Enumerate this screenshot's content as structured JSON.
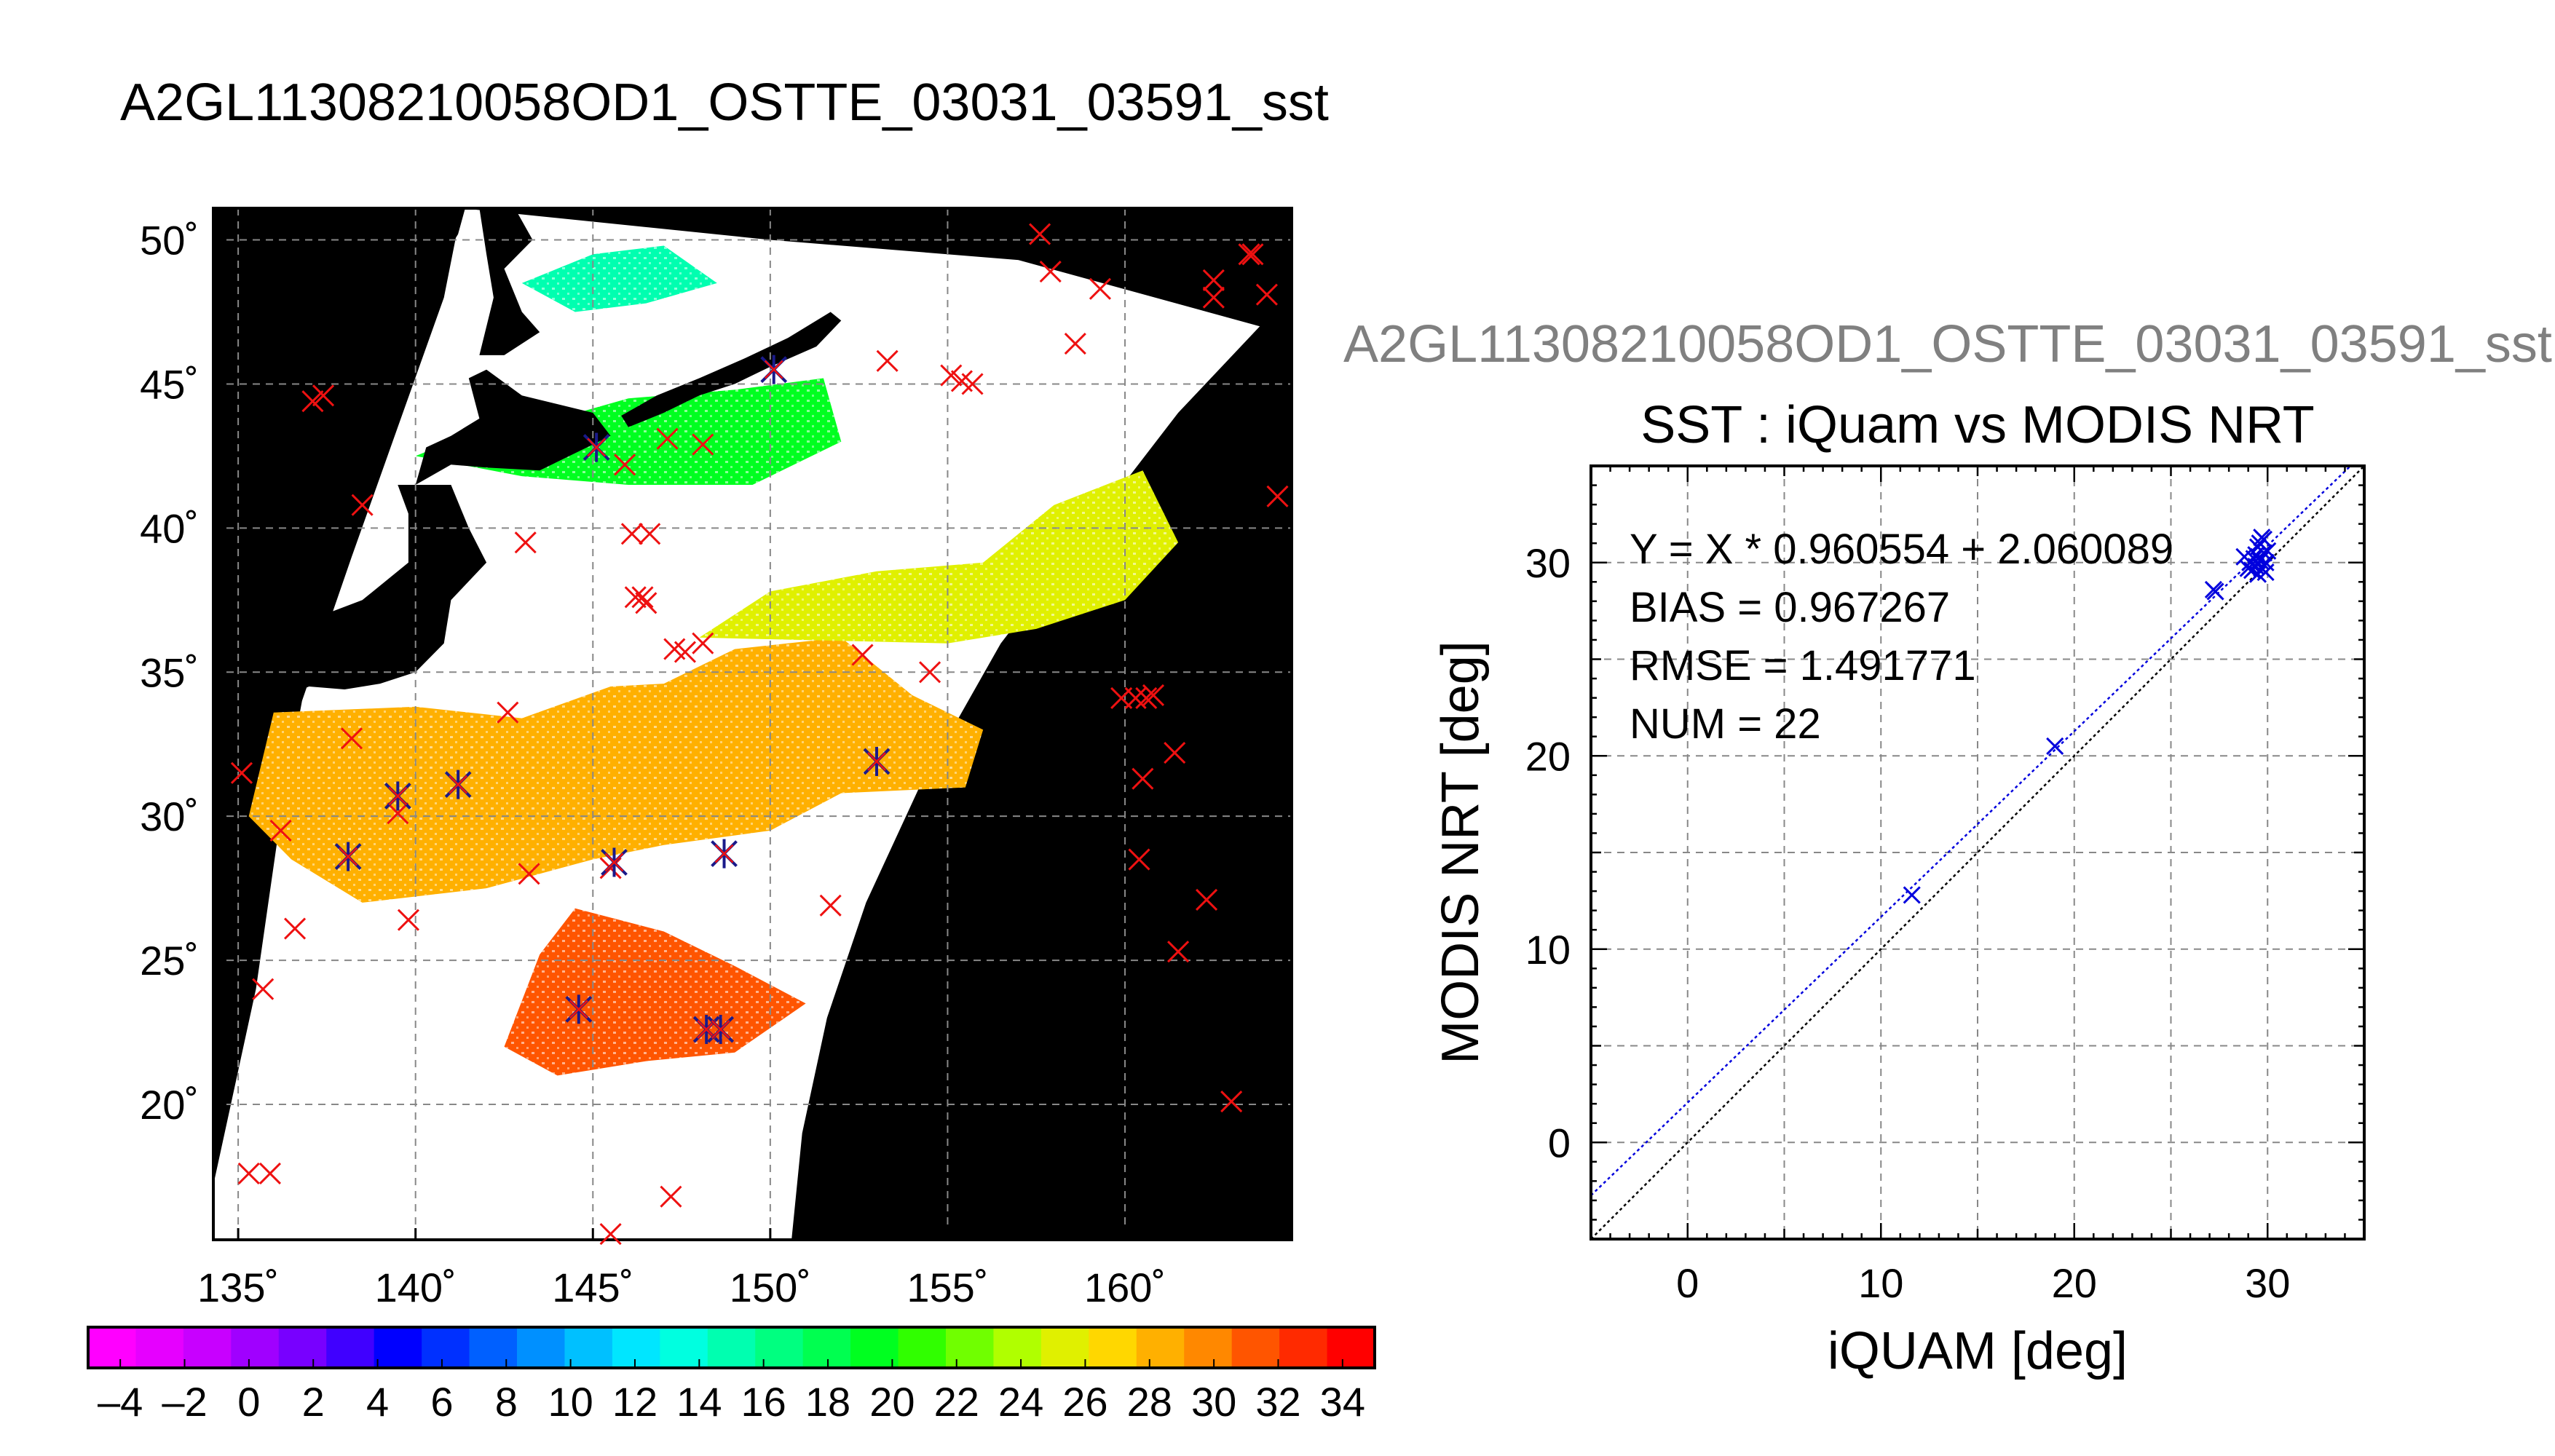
{
  "main_title": "A2GL11308210058OD1_OSTTE_03031_03591_sst",
  "secondary_title": "A2GL11308210058OD1_OSTTE_03031_03591_sst",
  "colors": {
    "map_background": "#000000",
    "cloud_mask": "#ffffff",
    "grid": "#888888",
    "marker_red": "#ee1111",
    "marker_navy": "#1a1a8a",
    "fit_line": "#0000dd",
    "identity_line": "#000000",
    "scatter_points": "#0000dd"
  },
  "chart_data": [
    {
      "type": "heatmap",
      "xlim": [
        134.3,
        164.7
      ],
      "ylim": [
        15.3,
        51.1
      ],
      "x_ticks": [
        135,
        140,
        145,
        150,
        155,
        160
      ],
      "y_ticks": [
        20,
        25,
        30,
        35,
        40,
        45,
        50
      ],
      "x_tick_labels": [
        "135˚",
        "140˚",
        "145˚",
        "150˚",
        "155˚",
        "160˚"
      ],
      "y_tick_labels": [
        "20˚",
        "25˚",
        "30˚",
        "35˚",
        "40˚",
        "45˚",
        "50˚"
      ],
      "grid": true,
      "colorbar": {
        "range": [
          -5,
          35
        ],
        "tick_labels": [
          "–4",
          "–2",
          "0",
          "2",
          "4",
          "6",
          "8",
          "10",
          "12",
          "14",
          "16",
          "18",
          "20",
          "22",
          "24",
          "26",
          "28",
          "30",
          "32",
          "34"
        ],
        "tick_values": [
          -4,
          -2,
          0,
          2,
          4,
          6,
          8,
          10,
          12,
          14,
          16,
          18,
          20,
          22,
          24,
          26,
          28,
          30,
          32,
          34
        ],
        "colors": [
          "#ff00ff",
          "#e600ff",
          "#c800ff",
          "#a000ff",
          "#7800ff",
          "#4000ff",
          "#0000ff",
          "#0030ff",
          "#0060ff",
          "#0090ff",
          "#00c0ff",
          "#00e6ff",
          "#00ffe0",
          "#00ffb0",
          "#00ff80",
          "#00ff50",
          "#00ff20",
          "#30ff00",
          "#70ff00",
          "#b0ff00",
          "#e0f000",
          "#ffd700",
          "#ffb000",
          "#ff8800",
          "#ff5500",
          "#ff2a00",
          "#ff0000"
        ]
      },
      "sst_regions": [
        {
          "name": "southern-warm-core",
          "value_c": 31,
          "outline": [
            [
              142.5,
              22
            ],
            [
              144,
              21
            ],
            [
              146.5,
              21.5
            ],
            [
              149,
              21.8
            ],
            [
              151,
              23.5
            ],
            [
              149,
              24.8
            ],
            [
              147,
              26
            ],
            [
              144.5,
              26.8
            ],
            [
              143.5,
              25.2
            ]
          ]
        },
        {
          "name": "subtropical-band",
          "value_c": 28.5,
          "outline": [
            [
              136,
              33.6
            ],
            [
              140,
              33.8
            ],
            [
              143,
              33.4
            ],
            [
              145.5,
              34.5
            ],
            [
              147,
              34.6
            ],
            [
              149,
              35.8
            ],
            [
              152,
              36.2
            ],
            [
              154,
              34.2
            ],
            [
              156,
              33
            ],
            [
              155.5,
              31
            ],
            [
              152,
              30.8
            ],
            [
              150,
              29.5
            ],
            [
              147,
              29
            ],
            [
              145,
              28.5
            ],
            [
              142,
              27.5
            ],
            [
              138.5,
              27
            ],
            [
              136.5,
              28.5
            ],
            [
              135.3,
              30
            ]
          ]
        },
        {
          "name": "mid-latitude-band",
          "value_c": 25,
          "outline": [
            [
              148,
              36.2
            ],
            [
              150,
              37.8
            ],
            [
              153,
              38.5
            ],
            [
              156,
              38.8
            ],
            [
              158,
              40.8
            ],
            [
              160.5,
              42
            ],
            [
              161.5,
              39.5
            ],
            [
              160,
              37.5
            ],
            [
              157.5,
              36.5
            ],
            [
              155,
              36
            ]
          ]
        },
        {
          "name": "northern-cool-band",
          "value_c": 20,
          "outline": [
            [
              140,
              42.5
            ],
            [
              142,
              43.5
            ],
            [
              144,
              43.8
            ],
            [
              146,
              44.5
            ],
            [
              149,
              44.8
            ],
            [
              151.5,
              45.2
            ],
            [
              152,
              43
            ],
            [
              149.5,
              41.5
            ],
            [
              146,
              41.5
            ],
            [
              143,
              41.8
            ]
          ]
        },
        {
          "name": "okhotsk-cold",
          "value_c": 15,
          "outline": [
            [
              143,
              48.5
            ],
            [
              145,
              49.5
            ],
            [
              147,
              49.8
            ],
            [
              148.5,
              48.5
            ],
            [
              146.5,
              47.8
            ],
            [
              144.5,
              47.5
            ]
          ]
        }
      ],
      "land": [
        {
          "name": "honshu",
          "outline": [
            [
              139.5,
              41.5
            ],
            [
              141,
              41.5
            ],
            [
              141.5,
              40
            ],
            [
              142,
              38.8
            ],
            [
              141,
              37.5
            ],
            [
              140.8,
              36
            ],
            [
              140,
              35
            ],
            [
              139,
              34.6
            ],
            [
              138,
              34.4
            ],
            [
              137,
              34.5
            ],
            [
              136,
              34
            ],
            [
              136,
              35.5
            ],
            [
              137,
              36.8
            ],
            [
              138.5,
              37.5
            ],
            [
              139.8,
              38.8
            ],
            [
              139.8,
              40.5
            ]
          ]
        },
        {
          "name": "hokkaido",
          "outline": [
            [
              140,
              41.5
            ],
            [
              141,
              42.2
            ],
            [
              142,
              42.1
            ],
            [
              143.5,
              42
            ],
            [
              145.5,
              43.2
            ],
            [
              145,
              44
            ],
            [
              143,
              44.6
            ],
            [
              142,
              45.5
            ],
            [
              141.5,
              45.2
            ],
            [
              141.8,
              43.8
            ],
            [
              141,
              43.2
            ],
            [
              140.3,
              42.8
            ]
          ]
        },
        {
          "name": "sakhalin",
          "outline": [
            [
              141.8,
              46
            ],
            [
              142.5,
              46
            ],
            [
              143.5,
              46.8
            ],
            [
              143,
              47.5
            ],
            [
              142.5,
              49
            ],
            [
              143.3,
              50
            ],
            [
              142.8,
              51.1
            ],
            [
              141.8,
              51.1
            ],
            [
              142,
              49.5
            ],
            [
              142.2,
              48
            ]
          ]
        },
        {
          "name": "kuril-chain",
          "outline": [
            [
              146,
              43.5
            ],
            [
              147,
              44
            ],
            [
              148,
              44.6
            ],
            [
              149,
              45
            ],
            [
              150,
              45.6
            ],
            [
              151.3,
              46.3
            ],
            [
              152,
              47.2
            ],
            [
              151.7,
              47.5
            ],
            [
              150.5,
              46.6
            ],
            [
              149.3,
              45.9
            ],
            [
              148,
              45.2
            ],
            [
              146.8,
              44.6
            ],
            [
              145.8,
              43.9
            ]
          ]
        },
        {
          "name": "asia-coast",
          "outline": [
            [
              134.3,
              42.8
            ],
            [
              135,
              43.8
            ],
            [
              137,
              45.5
            ],
            [
              139,
              47.2
            ],
            [
              140.5,
              48.8
            ],
            [
              141.2,
              50.2
            ],
            [
              141.4,
              51.1
            ],
            [
              134.3,
              51.1
            ]
          ]
        }
      ],
      "swath": {
        "left_edge": [
          [
            134.3,
            17.2
          ],
          [
            135.5,
            24
          ],
          [
            136.2,
            30
          ],
          [
            136.8,
            34
          ],
          [
            138.2,
            39
          ],
          [
            139.5,
            43.5
          ],
          [
            140.8,
            48
          ],
          [
            141.3,
            51.1
          ]
        ],
        "right_edge": [
          [
            163.8,
            47
          ],
          [
            161.5,
            44
          ],
          [
            159,
            40
          ],
          [
            156.5,
            36
          ],
          [
            154.2,
            31
          ],
          [
            152.7,
            27
          ],
          [
            151.6,
            23
          ],
          [
            150.9,
            19
          ],
          [
            150.6,
            15.3
          ]
        ],
        "top_edge": [
          [
            141.3,
            51.1
          ],
          [
            150,
            50
          ],
          [
            157,
            49.3
          ],
          [
            163.8,
            47
          ]
        ]
      },
      "markers_red_x": [
        [
          135.9,
          17.6
        ],
        [
          135.3,
          17.6
        ],
        [
          135.7,
          24
        ],
        [
          136.6,
          26.1
        ],
        [
          136.2,
          29.5
        ],
        [
          135.1,
          31.5
        ],
        [
          138.2,
          32.7
        ],
        [
          139.8,
          26.4
        ],
        [
          139.5,
          30.1
        ],
        [
          142.6,
          33.6
        ],
        [
          143.2,
          28
        ],
        [
          145.5,
          28.2
        ],
        [
          145.5,
          15.5
        ],
        [
          147.2,
          16.8
        ],
        [
          151.7,
          26.9
        ],
        [
          152.6,
          35.6
        ],
        [
          154.5,
          35
        ],
        [
          153.3,
          45.8
        ],
        [
          155.1,
          45.3
        ],
        [
          155.4,
          45.1
        ],
        [
          155.7,
          45
        ],
        [
          157.6,
          50.2
        ],
        [
          157.9,
          48.9
        ],
        [
          159.3,
          48.3
        ],
        [
          158.6,
          46.4
        ],
        [
          162.5,
          48.6
        ],
        [
          162.5,
          48
        ],
        [
          163.5,
          49.5
        ],
        [
          163.6,
          49.5
        ],
        [
          164,
          48.1
        ],
        [
          164.3,
          41.1
        ],
        [
          159.9,
          34.1
        ],
        [
          160.3,
          34.1
        ],
        [
          160.6,
          34.1
        ],
        [
          160.8,
          34.2
        ],
        [
          161.4,
          32.2
        ],
        [
          160.5,
          31.3
        ],
        [
          160.4,
          28.5
        ],
        [
          162.3,
          27.1
        ],
        [
          161.5,
          25.3
        ],
        [
          163,
          20.1
        ],
        [
          137.1,
          44.4
        ],
        [
          137.4,
          44.6
        ],
        [
          138.5,
          40.8
        ],
        [
          143.1,
          39.5
        ],
        [
          145.9,
          42.2
        ],
        [
          147.1,
          43.1
        ],
        [
          148.1,
          42.9
        ],
        [
          146.1,
          39.8
        ],
        [
          146.6,
          39.8
        ],
        [
          146.2,
          37.6
        ],
        [
          146.4,
          37.6
        ],
        [
          146.5,
          37.4
        ],
        [
          147.3,
          35.8
        ],
        [
          147.6,
          35.7
        ],
        [
          148.1,
          36
        ],
        [
          145.1,
          42.8
        ]
      ],
      "markers_navy_star": [
        [
          138.1,
          28.6
        ],
        [
          139.5,
          30.7
        ],
        [
          141.2,
          31.1
        ],
        [
          144.6,
          23.3
        ],
        [
          145.6,
          28.4
        ],
        [
          148.2,
          22.6
        ],
        [
          148.6,
          22.6
        ],
        [
          148.7,
          28.7
        ],
        [
          153,
          31.9
        ],
        [
          150.1,
          45.5
        ],
        [
          145.1,
          42.8
        ]
      ]
    },
    {
      "type": "scatter",
      "title": "SST : iQuam vs MODIS NRT",
      "xlabel": "iQUAM [deg]",
      "ylabel": "MODIS NRT [deg]",
      "xlim": [
        -5,
        35
      ],
      "ylim": [
        -5,
        35
      ],
      "x_ticks": [
        0,
        10,
        20,
        30
      ],
      "y_ticks": [
        0,
        10,
        20,
        30
      ],
      "grid": true,
      "annotations": [
        "Y = X * 0.960554 + 2.060089",
        "BIAS = 0.967267",
        "RMSE = 1.491771",
        "NUM = 22"
      ],
      "fit": {
        "slope": 0.960554,
        "intercept": 2.060089
      },
      "identity_line": true,
      "points": [
        [
          11.6,
          12.8
        ],
        [
          19.0,
          20.5
        ],
        [
          27.2,
          28.6
        ],
        [
          27.3,
          28.5
        ],
        [
          28.8,
          30.3
        ],
        [
          29.0,
          29.7
        ],
        [
          29.1,
          30.0
        ],
        [
          29.2,
          29.6
        ],
        [
          29.3,
          30.2
        ],
        [
          29.4,
          30.4
        ],
        [
          29.4,
          29.8
        ],
        [
          29.5,
          30.8
        ],
        [
          29.6,
          30.1
        ],
        [
          29.6,
          31.0
        ],
        [
          29.7,
          29.7
        ],
        [
          29.8,
          30.5
        ],
        [
          29.8,
          31.2
        ],
        [
          29.9,
          30.0
        ],
        [
          30.0,
          30.6
        ],
        [
          29.5,
          29.4
        ],
        [
          29.7,
          31.3
        ],
        [
          29.9,
          29.5
        ]
      ]
    }
  ]
}
